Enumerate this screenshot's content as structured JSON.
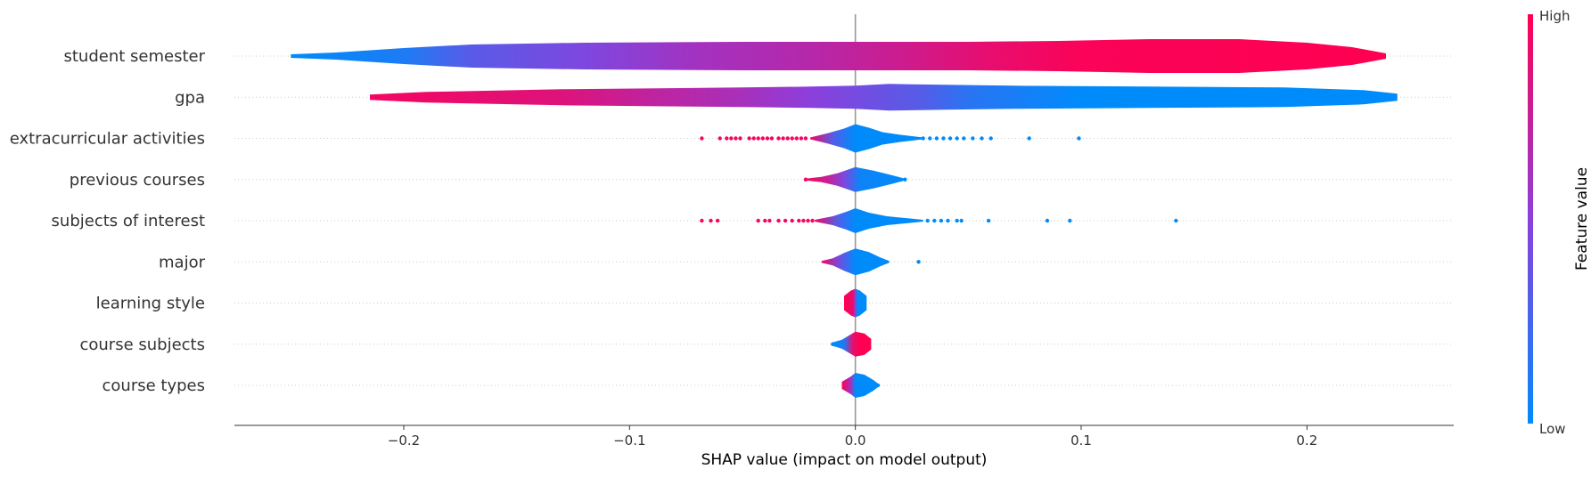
{
  "chart_data": {
    "type": "violin",
    "title": "",
    "xlabel": "SHAP value (impact on model output)",
    "xlim": [
      -0.275,
      0.265
    ],
    "xticks": [
      -0.2,
      -0.1,
      0.0,
      0.1,
      0.2
    ],
    "xtick_labels": [
      "−0.2",
      "−0.1",
      "0.0",
      "0.1",
      "0.2"
    ],
    "grid": "dotted horizontal per feature",
    "colorbar": {
      "title": "Feature value",
      "high_label": "High",
      "low_label": "Low",
      "low_color": "#008bfb",
      "mid_color": "#8c3fdc",
      "high_color": "#ff0052"
    },
    "features": [
      {
        "name": "student semester",
        "range": [
          -0.25,
          0.235
        ],
        "profile": [
          [
            -0.25,
            2
          ],
          [
            -0.23,
            4
          ],
          [
            -0.2,
            9
          ],
          [
            -0.17,
            13
          ],
          [
            -0.12,
            15
          ],
          [
            -0.05,
            16
          ],
          [
            0.0,
            16
          ],
          [
            0.05,
            16
          ],
          [
            0.09,
            17
          ],
          [
            0.13,
            19
          ],
          [
            0.17,
            19
          ],
          [
            0.2,
            15
          ],
          [
            0.22,
            10
          ],
          [
            0.235,
            3
          ]
        ],
        "colors": [
          [
            -0.25,
            0.0
          ],
          [
            -0.2,
            0.1
          ],
          [
            -0.17,
            0.32
          ],
          [
            -0.12,
            0.45
          ],
          [
            -0.07,
            0.6
          ],
          [
            -0.02,
            0.68
          ],
          [
            0.02,
            0.78
          ],
          [
            0.06,
            0.9
          ],
          [
            0.1,
            0.98
          ],
          [
            0.235,
            1.0
          ]
        ],
        "points": []
      },
      {
        "name": "gpa",
        "range": [
          -0.215,
          0.24
        ],
        "profile": [
          [
            -0.215,
            3
          ],
          [
            -0.19,
            6
          ],
          [
            -0.13,
            9
          ],
          [
            -0.05,
            11
          ],
          [
            -0.02,
            12
          ],
          [
            0.0,
            13
          ],
          [
            0.015,
            15
          ],
          [
            0.04,
            14
          ],
          [
            0.07,
            13
          ],
          [
            0.13,
            12
          ],
          [
            0.19,
            11
          ],
          [
            0.225,
            8
          ],
          [
            0.24,
            4
          ]
        ],
        "colors": [
          [
            -0.215,
            0.95
          ],
          [
            -0.13,
            0.85
          ],
          [
            -0.09,
            0.72
          ],
          [
            -0.05,
            0.62
          ],
          [
            -0.02,
            0.5
          ],
          [
            0.0,
            0.42
          ],
          [
            0.03,
            0.3
          ],
          [
            0.05,
            0.15
          ],
          [
            0.1,
            0.0
          ],
          [
            0.24,
            0.0
          ]
        ],
        "points": []
      },
      {
        "name": "extracurricular activities",
        "range": [
          -0.02,
          0.03
        ],
        "profile": [
          [
            -0.02,
            1
          ],
          [
            -0.012,
            6
          ],
          [
            -0.005,
            11
          ],
          [
            0.0,
            16
          ],
          [
            0.006,
            12
          ],
          [
            0.012,
            7
          ],
          [
            0.02,
            4
          ],
          [
            0.03,
            1
          ]
        ],
        "colors": [
          [
            -0.02,
            0.95
          ],
          [
            -0.01,
            0.3
          ],
          [
            0.0,
            0.0
          ],
          [
            0.03,
            0.0
          ]
        ],
        "points": [
          [
            -0.068,
            0.95
          ],
          [
            -0.06,
            0.95
          ],
          [
            -0.057,
            0.95
          ],
          [
            -0.055,
            0.95
          ],
          [
            -0.053,
            0.95
          ],
          [
            -0.051,
            0.95
          ],
          [
            -0.047,
            0.95
          ],
          [
            -0.045,
            0.95
          ],
          [
            -0.043,
            0.95
          ],
          [
            -0.041,
            0.95
          ],
          [
            -0.039,
            0.95
          ],
          [
            -0.037,
            0.95
          ],
          [
            -0.034,
            0.95
          ],
          [
            -0.032,
            0.95
          ],
          [
            -0.03,
            0.95
          ],
          [
            -0.028,
            0.95
          ],
          [
            -0.026,
            0.95
          ],
          [
            -0.024,
            0.95
          ],
          [
            -0.022,
            0.95
          ],
          [
            0.03,
            0.0
          ],
          [
            0.033,
            0.0
          ],
          [
            0.036,
            0.0
          ],
          [
            0.039,
            0.0
          ],
          [
            0.042,
            0.0
          ],
          [
            0.045,
            0.0
          ],
          [
            0.048,
            0.0
          ],
          [
            0.052,
            0.0
          ],
          [
            0.056,
            0.0
          ],
          [
            0.06,
            0.0
          ],
          [
            0.077,
            0.0
          ],
          [
            0.099,
            0.0
          ]
        ]
      },
      {
        "name": "previous courses",
        "range": [
          -0.022,
          0.022
        ],
        "profile": [
          [
            -0.022,
            1
          ],
          [
            -0.015,
            3
          ],
          [
            -0.008,
            7
          ],
          [
            0.0,
            14
          ],
          [
            0.008,
            10
          ],
          [
            0.016,
            5
          ],
          [
            0.022,
            1
          ]
        ],
        "colors": [
          [
            -0.022,
            0.95
          ],
          [
            -0.012,
            0.75
          ],
          [
            -0.005,
            0.45
          ],
          [
            0.002,
            0.05
          ],
          [
            0.022,
            0.0
          ]
        ],
        "points": [
          [
            -0.022,
            0.95
          ],
          [
            0.022,
            0.0
          ]
        ]
      },
      {
        "name": "subjects of interest",
        "range": [
          -0.018,
          0.03
        ],
        "profile": [
          [
            -0.018,
            1
          ],
          [
            -0.01,
            5
          ],
          [
            -0.004,
            10
          ],
          [
            0.0,
            14
          ],
          [
            0.006,
            9
          ],
          [
            0.014,
            5
          ],
          [
            0.022,
            3
          ],
          [
            0.03,
            1
          ]
        ],
        "colors": [
          [
            -0.018,
            0.95
          ],
          [
            -0.008,
            0.3
          ],
          [
            0.0,
            0.0
          ],
          [
            0.03,
            0.0
          ]
        ],
        "points": [
          [
            -0.068,
            0.95
          ],
          [
            -0.064,
            0.95
          ],
          [
            -0.061,
            0.95
          ],
          [
            -0.043,
            0.95
          ],
          [
            -0.04,
            0.95
          ],
          [
            -0.038,
            0.95
          ],
          [
            -0.034,
            0.95
          ],
          [
            -0.031,
            0.95
          ],
          [
            -0.028,
            0.95
          ],
          [
            -0.025,
            0.95
          ],
          [
            -0.023,
            0.95
          ],
          [
            -0.021,
            0.95
          ],
          [
            -0.019,
            0.95
          ],
          [
            0.032,
            0.0
          ],
          [
            0.035,
            0.0
          ],
          [
            0.038,
            0.0
          ],
          [
            0.041,
            0.0
          ],
          [
            0.045,
            0.0
          ],
          [
            0.047,
            0.0
          ],
          [
            0.059,
            0.0
          ],
          [
            0.085,
            0.0
          ],
          [
            0.095,
            0.0
          ],
          [
            0.142,
            0.0
          ]
        ]
      },
      {
        "name": "major",
        "range": [
          -0.015,
          0.015
        ],
        "profile": [
          [
            -0.015,
            1
          ],
          [
            -0.01,
            4
          ],
          [
            -0.005,
            10
          ],
          [
            0.0,
            15
          ],
          [
            0.006,
            11
          ],
          [
            0.011,
            5
          ],
          [
            0.015,
            1
          ]
        ],
        "colors": [
          [
            -0.015,
            0.95
          ],
          [
            -0.007,
            0.4
          ],
          [
            0.0,
            0.0
          ],
          [
            0.015,
            0.0
          ]
        ],
        "points": [
          [
            0.028,
            0.0
          ]
        ]
      },
      {
        "name": "learning style",
        "range": [
          -0.005,
          0.005
        ],
        "profile": [
          [
            -0.005,
            8
          ],
          [
            -0.002,
            14
          ],
          [
            0.0,
            16
          ],
          [
            0.002,
            14
          ],
          [
            0.005,
            8
          ]
        ],
        "colors": [
          [
            -0.005,
            1.0
          ],
          [
            -0.001,
            0.9
          ],
          [
            0.0,
            0.45
          ],
          [
            0.001,
            0.0
          ],
          [
            0.005,
            0.0
          ]
        ],
        "points": []
      },
      {
        "name": "course subjects",
        "range": [
          -0.01,
          0.007
        ],
        "profile": [
          [
            -0.01,
            2
          ],
          [
            -0.006,
            5
          ],
          [
            -0.002,
            11
          ],
          [
            0.0,
            14
          ],
          [
            0.004,
            12
          ],
          [
            0.007,
            6
          ]
        ],
        "colors": [
          [
            -0.01,
            0.0
          ],
          [
            -0.005,
            0.1
          ],
          [
            -0.001,
            0.9
          ],
          [
            0.002,
            1.0
          ],
          [
            0.007,
            1.0
          ]
        ],
        "points": [
          [
            -0.01,
            0.0
          ]
        ]
      },
      {
        "name": "course types",
        "range": [
          -0.006,
          0.01
        ],
        "profile": [
          [
            -0.006,
            4
          ],
          [
            -0.002,
            10
          ],
          [
            0.0,
            14
          ],
          [
            0.004,
            12
          ],
          [
            0.008,
            6
          ],
          [
            0.01,
            2
          ]
        ],
        "colors": [
          [
            -0.006,
            1.0
          ],
          [
            -0.002,
            0.6
          ],
          [
            0.0,
            0.0
          ],
          [
            0.01,
            0.0
          ]
        ],
        "points": [
          [
            0.01,
            0.0
          ]
        ]
      }
    ]
  }
}
